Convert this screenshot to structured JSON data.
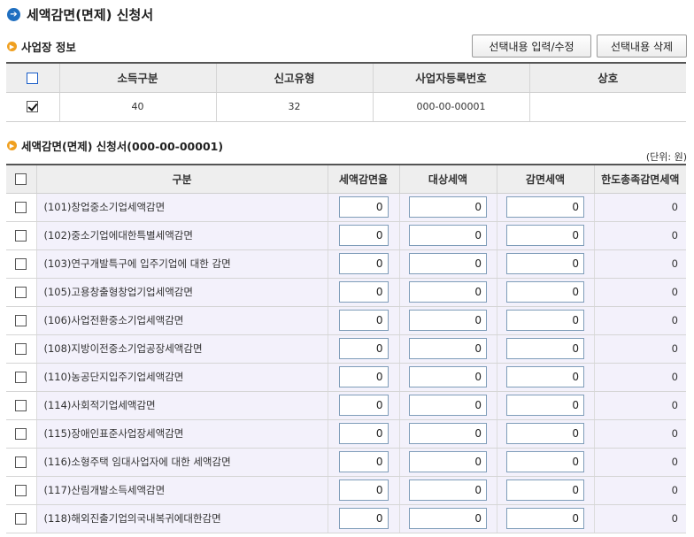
{
  "page": {
    "title": "세액감면(면제) 신청서"
  },
  "business_section": {
    "title": "사업장 정보",
    "buttons": {
      "edit": "선택내용 입력/수정",
      "delete": "선택내용 삭제"
    },
    "columns": [
      "소득구분",
      "신고유형",
      "사업자등록번호",
      "상호"
    ],
    "rows": [
      {
        "checked": true,
        "income_type": "40",
        "report_type": "32",
        "reg_no": "000-00-00001",
        "name": ""
      }
    ]
  },
  "reduction_section": {
    "title": "세액감면(면제) 신청서(000-00-00001)",
    "unit": "(단위: 원)",
    "columns": [
      "구분",
      "세액감면율",
      "대상세액",
      "감면세액",
      "한도총족감면세액"
    ],
    "rows": [
      {
        "label": "(101)창업중소기업세액감면",
        "rate": "0",
        "target": "0",
        "reduction": "0",
        "limit": "0"
      },
      {
        "label": "(102)중소기업에대한특별세액감면",
        "rate": "0",
        "target": "0",
        "reduction": "0",
        "limit": "0"
      },
      {
        "label": "(103)연구개발특구에 입주기업에 대한 감면",
        "rate": "0",
        "target": "0",
        "reduction": "0",
        "limit": "0"
      },
      {
        "label": "(105)고용창출형창업기업세액감면",
        "rate": "0",
        "target": "0",
        "reduction": "0",
        "limit": "0"
      },
      {
        "label": "(106)사업전환중소기업세액감면",
        "rate": "0",
        "target": "0",
        "reduction": "0",
        "limit": "0"
      },
      {
        "label": "(108)지방이전중소기업공장세액감면",
        "rate": "0",
        "target": "0",
        "reduction": "0",
        "limit": "0"
      },
      {
        "label": "(110)농공단지입주기업세액감면",
        "rate": "0",
        "target": "0",
        "reduction": "0",
        "limit": "0"
      },
      {
        "label": "(114)사회적기업세액감면",
        "rate": "0",
        "target": "0",
        "reduction": "0",
        "limit": "0"
      },
      {
        "label": "(115)장애인표준사업장세액감면",
        "rate": "0",
        "target": "0",
        "reduction": "0",
        "limit": "0"
      },
      {
        "label": "(116)소형주택 임대사업자에 대한 세액감면",
        "rate": "0",
        "target": "0",
        "reduction": "0",
        "limit": "0"
      },
      {
        "label": "(117)산림개발소득세액감면",
        "rate": "0",
        "target": "0",
        "reduction": "0",
        "limit": "0"
      },
      {
        "label": "(118)해외진출기업의국내복귀에대한감면",
        "rate": "0",
        "target": "0",
        "reduction": "0",
        "limit": "0"
      }
    ]
  },
  "colors": {
    "title_icon": "#1f6fc0",
    "section_icon": "#f0a020",
    "row_bg": "#f3f1fb",
    "header_bg": "#eeeeee"
  },
  "icons": {
    "title": "arrow-right-circle-icon",
    "section": "bullet-arrow-icon"
  }
}
